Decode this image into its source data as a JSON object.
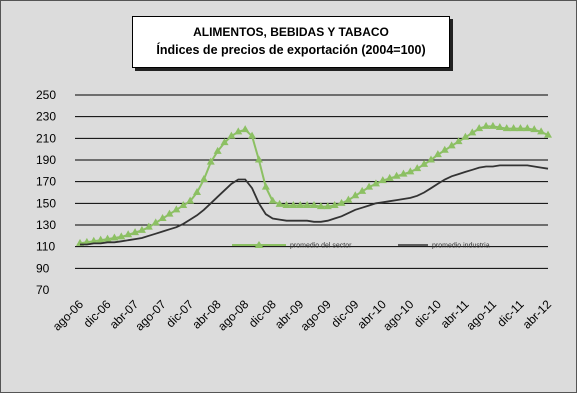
{
  "chart_data": {
    "type": "line",
    "title": "ALIMENTOS, BEBIDAS Y TABACO",
    "subtitle": "Índices de precios de exportación (2004=100)",
    "ylim": [
      70,
      250
    ],
    "yticks": [
      70,
      90,
      110,
      130,
      150,
      170,
      190,
      210,
      230,
      250
    ],
    "grid": true,
    "legend_placement": "center",
    "x_tick_labels": [
      "ago-06",
      "dic-06",
      "abr-07",
      "ago-07",
      "dic-07",
      "abr-08",
      "ago-08",
      "dic-08",
      "abr-09",
      "ago-09",
      "dic-09",
      "abr-10",
      "ago-10",
      "dic-10",
      "abr-11",
      "ago-11",
      "dic-11",
      "abr-12"
    ],
    "x": [
      "ago-06",
      "sep-06",
      "oct-06",
      "nov-06",
      "dic-06",
      "ene-07",
      "feb-07",
      "mar-07",
      "abr-07",
      "may-07",
      "jun-07",
      "jul-07",
      "ago-07",
      "sep-07",
      "oct-07",
      "nov-07",
      "dic-07",
      "ene-08",
      "feb-08",
      "mar-08",
      "abr-08",
      "may-08",
      "jun-08",
      "jul-08",
      "ago-08",
      "sep-08",
      "oct-08",
      "nov-08",
      "dic-08",
      "ene-09",
      "feb-09",
      "mar-09",
      "abr-09",
      "may-09",
      "jun-09",
      "jul-09",
      "ago-09",
      "sep-09",
      "oct-09",
      "nov-09",
      "dic-09",
      "ene-10",
      "feb-10",
      "mar-10",
      "abr-10",
      "may-10",
      "jun-10",
      "jul-10",
      "ago-10",
      "sep-10",
      "oct-10",
      "nov-10",
      "dic-10",
      "ene-11",
      "feb-11",
      "mar-11",
      "abr-11",
      "may-11",
      "jun-11",
      "jul-11",
      "ago-11",
      "sep-11",
      "oct-11",
      "nov-11",
      "dic-11",
      "ene-12",
      "feb-12",
      "mar-12",
      "abr-12"
    ],
    "series": [
      {
        "name": "promedio del sector",
        "color": "#8cc063",
        "marker": "triangle",
        "values": [
          113,
          114,
          115,
          116,
          117,
          118,
          119,
          121,
          123,
          125,
          128,
          132,
          136,
          140,
          144,
          148,
          152,
          160,
          172,
          188,
          198,
          206,
          212,
          216,
          218,
          212,
          190,
          165,
          152,
          149,
          148,
          148,
          148,
          148,
          148,
          147,
          147,
          148,
          150,
          153,
          157,
          161,
          165,
          168,
          171,
          173,
          175,
          177,
          179,
          182,
          186,
          190,
          195,
          199,
          203,
          207,
          211,
          215,
          219,
          221,
          221,
          220,
          219,
          219,
          219,
          219,
          218,
          216,
          213
        ]
      },
      {
        "name": "promedio industria",
        "color": "#333333",
        "marker": "none",
        "values": [
          112,
          112,
          113,
          113,
          114,
          114,
          115,
          116,
          117,
          118,
          120,
          122,
          124,
          126,
          128,
          131,
          135,
          139,
          144,
          150,
          156,
          162,
          168,
          172,
          172,
          164,
          150,
          140,
          136,
          135,
          134,
          134,
          134,
          134,
          133,
          133,
          134,
          136,
          138,
          141,
          144,
          146,
          148,
          150,
          151,
          152,
          153,
          154,
          155,
          157,
          160,
          164,
          168,
          172,
          175,
          177,
          179,
          181,
          183,
          184,
          184,
          185,
          185,
          185,
          185,
          185,
          184,
          183,
          182
        ]
      }
    ]
  }
}
